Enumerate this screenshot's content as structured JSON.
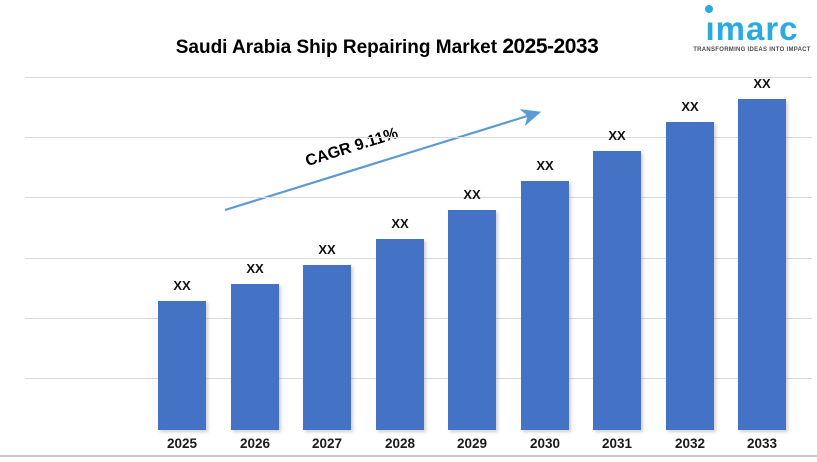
{
  "title": {
    "main": "Saudi Arabia Ship Repairing Market",
    "range": "2025-2033"
  },
  "logo": {
    "brand": "imarc",
    "tagline": "TRANSFORMING IDEAS INTO IMPACT",
    "brand_color": "#29ABE2"
  },
  "chart_data": {
    "type": "bar",
    "title": "Saudi Arabia Ship Repairing Market 2025-2033",
    "xlabel": "",
    "ylabel": "",
    "legend": "none",
    "categories": [
      "2025",
      "2026",
      "2027",
      "2028",
      "2029",
      "2030",
      "2031",
      "2032",
      "2033"
    ],
    "bar_value_labels": [
      "XX",
      "XX",
      "XX",
      "XX",
      "XX",
      "XX",
      "XX",
      "XX",
      "XX"
    ],
    "values_masked": true,
    "estimated_relative_values": [
      129,
      146,
      165,
      191,
      220,
      249,
      279,
      308,
      331
    ],
    "annotation": {
      "text": "CAGR 9.11%"
    },
    "grid": {
      "visible": true,
      "horizontal_lines": 6
    },
    "colors": {
      "bar": "#4472C4",
      "arrow": "#5B9BD5",
      "grid": "#D9D9D9",
      "title": "#000000"
    }
  }
}
